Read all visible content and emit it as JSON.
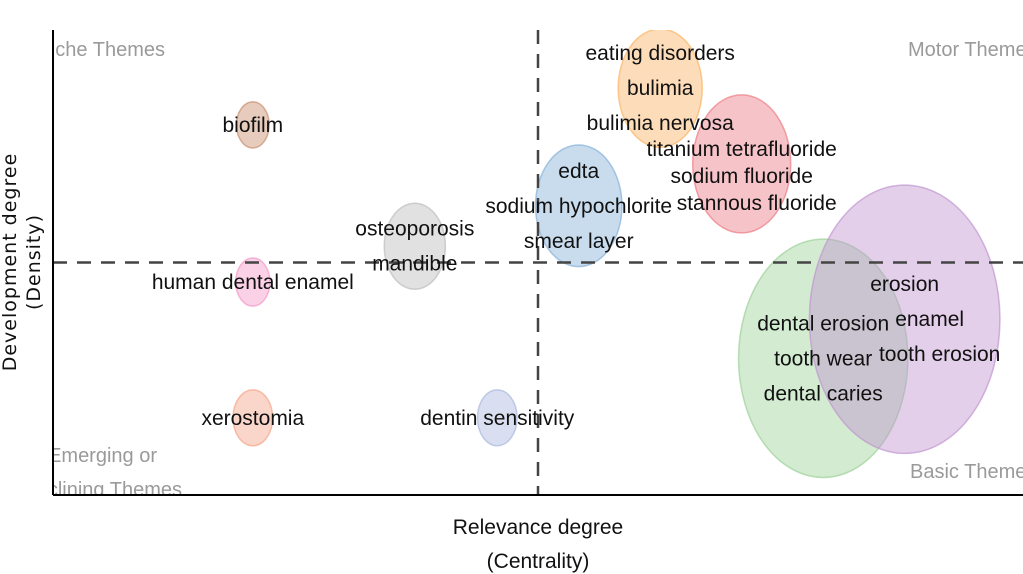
{
  "chart_data": {
    "type": "scatter",
    "subtype": "bubble thematic map",
    "xlabel": [
      "Relevance degree",
      "(Centrality)"
    ],
    "ylabel": [
      "Development degree",
      "(Density)"
    ],
    "xlim": [
      0,
      10
    ],
    "ylim": [
      0,
      10
    ],
    "x_ref_line": 5.0,
    "y_ref_line": 5.0,
    "ticks": false,
    "grid": false,
    "quadrant_labels": {
      "top_left": [
        "Niche Themes"
      ],
      "top_right": [
        "Motor Themes"
      ],
      "bottom_left": [
        "Emerging or",
        "Declining Themes"
      ],
      "bottom_right": [
        "Basic Themes"
      ]
    },
    "clusters": [
      {
        "labels": [
          "biofilm"
        ],
        "x": 2.06,
        "y": 7.96,
        "size": 5.3,
        "color": "#c98f6e"
      },
      {
        "labels": [
          "human dental enamel"
        ],
        "x": 2.06,
        "y": 4.58,
        "size": 5.8,
        "color": "#f49ac8"
      },
      {
        "labels": [
          "xerostomia"
        ],
        "x": 2.06,
        "y": 1.66,
        "size": 7.8,
        "color": "#f5a58a"
      },
      {
        "labels": [
          "osteoporosis",
          "mandible"
        ],
        "x": 3.73,
        "y": 5.35,
        "size": 18.5,
        "color": "#bdbdbd"
      },
      {
        "labels": [
          "dentin sensitivity"
        ],
        "x": 4.58,
        "y": 1.66,
        "size": 7.8,
        "color": "#aab8dd"
      },
      {
        "labels": [
          "edta",
          "sodium hypochlorite",
          "smear layer"
        ],
        "x": 5.42,
        "y": 6.22,
        "size": 37,
        "color": "#86b1d9"
      },
      {
        "labels": [
          "eating disorders",
          "bulimia",
          "bulimia nervosa"
        ],
        "x": 6.26,
        "y": 8.75,
        "size": 35,
        "color": "#fbb463"
      },
      {
        "labels": [
          "titanium tetrafluoride",
          "sodium fluoride",
          "stannous fluoride"
        ],
        "x": 7.1,
        "y": 7.12,
        "size": 47.6,
        "color": "#ec7d84"
      },
      {
        "labels": [
          "dental erosion",
          "tooth wear",
          "dental caries"
        ],
        "x": 7.94,
        "y": 2.94,
        "size": 142,
        "color": "#9cd299"
      },
      {
        "labels": [
          "erosion",
          "enamel",
          "tooth erosion"
        ],
        "x": 8.78,
        "y": 3.78,
        "size": 180,
        "color": "#c095d0"
      }
    ]
  }
}
